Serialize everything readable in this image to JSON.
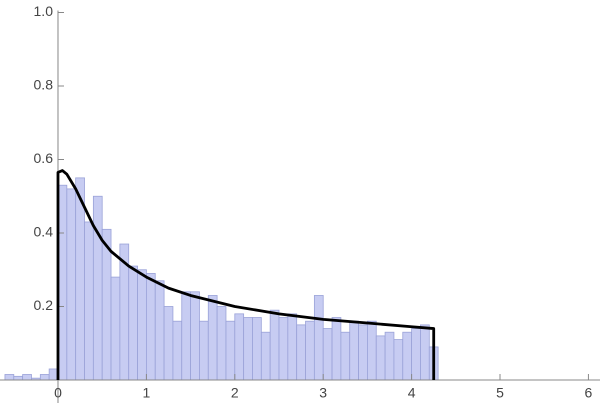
{
  "chart_data": {
    "type": "histogram",
    "bins": [
      -0.6,
      -0.5,
      -0.4,
      -0.3,
      -0.2,
      -0.1,
      0,
      0.1,
      0.2,
      0.3,
      0.4,
      0.5,
      0.6,
      0.7,
      0.8,
      0.9,
      1.0,
      1.1,
      1.2,
      1.3,
      1.4,
      1.5,
      1.6,
      1.7,
      1.8,
      1.9,
      2.0,
      2.1,
      2.2,
      2.3,
      2.4,
      2.5,
      2.6,
      2.7,
      2.8,
      2.9,
      3.0,
      3.1,
      3.2,
      3.3,
      3.4,
      3.5,
      3.6,
      3.7,
      3.8,
      3.9,
      4.0,
      4.1,
      4.2,
      4.3
    ],
    "values": [
      0.015,
      0.01,
      0.015,
      0.005,
      0.015,
      0.03,
      0.53,
      0.52,
      0.55,
      0.43,
      0.5,
      0.41,
      0.28,
      0.37,
      0.31,
      0.3,
      0.29,
      0.27,
      0.2,
      0.16,
      0.24,
      0.24,
      0.16,
      0.23,
      0.2,
      0.16,
      0.18,
      0.17,
      0.17,
      0.13,
      0.19,
      0.17,
      0.18,
      0.15,
      0.16,
      0.23,
      0.14,
      0.17,
      0.13,
      0.16,
      0.15,
      0.16,
      0.12,
      0.13,
      0.11,
      0.13,
      0.14,
      0.15,
      0.09
    ],
    "color": "#c7ccf2",
    "curve": {
      "x": [
        0,
        0,
        0.05,
        0.1,
        0.2,
        0.3,
        0.4,
        0.5,
        0.6,
        0.8,
        1.0,
        1.25,
        1.5,
        2,
        2.5,
        3,
        3.5,
        4,
        4.25,
        4.25
      ],
      "y": [
        0,
        0.565,
        0.57,
        0.56,
        0.52,
        0.47,
        0.42,
        0.38,
        0.35,
        0.31,
        0.28,
        0.25,
        0.23,
        0.2,
        0.18,
        0.165,
        0.155,
        0.145,
        0.14,
        0
      ],
      "color": "#000000"
    },
    "xlim": [
      -0.656,
      6.131
    ],
    "ylim": [
      0,
      1
    ],
    "xticks": [
      0,
      1,
      2,
      3,
      4,
      5,
      6
    ],
    "yticks": [
      0.2,
      0.4,
      0.6,
      0.8,
      {
        "value": 1,
        "label": "1.0"
      }
    ]
  }
}
